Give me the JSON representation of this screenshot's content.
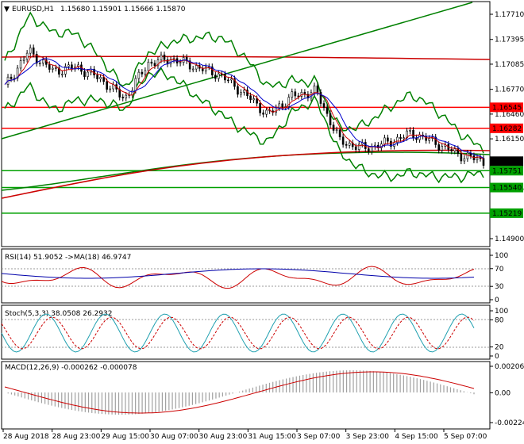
{
  "header": {
    "symbol": "EURUSD,H1",
    "ohlc": "1.15680 1.15901 1.15666 1.15870"
  },
  "price_axis": {
    "ticks": [
      "1.17710",
      "1.17395",
      "1.17085",
      "1.16770",
      "1.16460",
      "1.16150",
      "1.15835",
      "1.15525",
      "1.15210",
      "1.14900"
    ],
    "ticks_visible": [
      "1.17710",
      "1.17395",
      "1.17085",
      "1.16770",
      "1.16460",
      "1.16150",
      "1.15525",
      "1.14900"
    ]
  },
  "price_labels": [
    {
      "value": 1.16545,
      "text": "1.16545",
      "color": "#ff0000"
    },
    {
      "value": 1.16282,
      "text": "1.16282",
      "color": "#ff0000"
    },
    {
      "value": 1.1587,
      "text": "1.15870",
      "color": "#000000"
    },
    {
      "value": 1.15751,
      "text": "1.15751",
      "color": "#00a000"
    },
    {
      "value": 1.1554,
      "text": "1.15540",
      "color": "#00a000"
    },
    {
      "value": 1.15219,
      "text": "1.15219",
      "color": "#00a000"
    }
  ],
  "horizontal_levels": [
    {
      "value": 1.16545,
      "color": "#ff0000"
    },
    {
      "value": 1.16282,
      "color": "#ff0000"
    },
    {
      "value": 1.15751,
      "color": "#00a000"
    },
    {
      "value": 1.1554,
      "color": "#00a000"
    },
    {
      "value": 1.15219,
      "color": "#00a000"
    }
  ],
  "time_axis": {
    "labels": [
      "28 Aug 2018",
      "28 Aug 23:00",
      "29 Aug 15:00",
      "30 Aug 07:00",
      "30 Aug 23:00",
      "31 Aug 15:00",
      "3 Sep 07:00",
      "3 Sep 23:00",
      "4 Sep 15:00",
      "5 Sep 07:00"
    ]
  },
  "rsi": {
    "title": "RSI(14) 51.9052  ->MA(18) 46.9747",
    "ticks": [
      "100",
      "70",
      "30",
      "0"
    ]
  },
  "stoch": {
    "title": "Stoch(5,3,3) 38.0508 26.2932",
    "ticks": [
      "100",
      "80",
      "20",
      "0"
    ]
  },
  "macd": {
    "title": "MACD(12,26,9) -0.000262 -0.000078",
    "ticks": [
      "0.002066",
      "0.00",
      "-0.002241"
    ]
  },
  "chart_data": {
    "type": "line",
    "title": "EURUSD,H1",
    "series": [
      {
        "name": "EURUSD,H1",
        "x": [
          0,
          10,
          20,
          30,
          40,
          50,
          60,
          70,
          80,
          90,
          100,
          110,
          120,
          130,
          140,
          150,
          160,
          170,
          180,
          190,
          200
        ],
        "values": [
          1.168,
          1.1725,
          1.17,
          1.1705,
          1.169,
          1.1665,
          1.171,
          1.1715,
          1.1705,
          1.1695,
          1.1672,
          1.1645,
          1.1668,
          1.1675,
          1.1612,
          1.1603,
          1.161,
          1.1622,
          1.161,
          1.1595,
          1.1587
        ]
      }
    ],
    "ylim": [
      1.149,
      1.1771
    ],
    "legend": "none"
  }
}
